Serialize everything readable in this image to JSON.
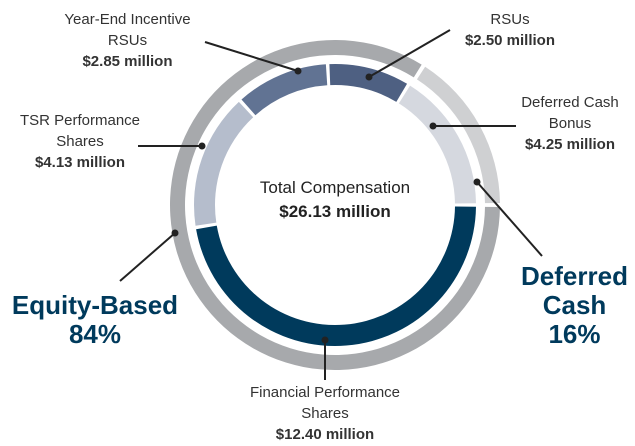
{
  "chart_data": {
    "type": "donut",
    "title": "Total Compensation",
    "total": 26.13,
    "total_label": "$26.13 million",
    "rings": [
      {
        "categories": [
          "Financial Performance Shares",
          "TSR Performance Shares",
          "Year-End Incentive RSUs",
          "RSUs",
          "Deferred Cash Bonus"
        ],
        "values": [
          12.4,
          4.13,
          2.85,
          2.5,
          4.25
        ],
        "value_labels": [
          "$12.40 million",
          "$4.13 million",
          "$2.85 million",
          "$2.50 million",
          "$4.25 million"
        ],
        "colors": [
          "#003a5c",
          "#b5bdcc",
          "#617393",
          "#4e6082",
          "#d5d8df"
        ]
      },
      {
        "categories": [
          "Equity-Based",
          "Deferred Cash"
        ],
        "values": [
          84,
          16
        ],
        "value_labels": [
          "84%",
          "16%"
        ],
        "colors": [
          "#a7a9ac",
          "#cfd0d2"
        ]
      }
    ]
  }
}
